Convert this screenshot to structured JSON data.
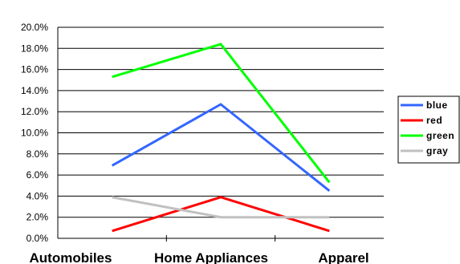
{
  "chart_data": {
    "type": "line",
    "categories": [
      "Automobiles",
      "Home Appliances",
      "Apparel"
    ],
    "ylim": [
      0,
      0.2
    ],
    "yticks": [
      0,
      0.02,
      0.04,
      0.06,
      0.08,
      0.1,
      0.12,
      0.14,
      0.16,
      0.18,
      0.2
    ],
    "ytick_labels": [
      "0.0%",
      "2.0%",
      "4.0%",
      "6.0%",
      "8.0%",
      "10.0%",
      "12.0%",
      "14.0%",
      "16.0%",
      "18.0%",
      "20.0%"
    ],
    "grid": "horizontal",
    "legend_position": "right",
    "series": [
      {
        "name": "blue",
        "color": "#3366ff",
        "values": [
          0.069,
          0.127,
          0.045
        ]
      },
      {
        "name": "red",
        "color": "#ff0000",
        "values": [
          0.007,
          0.039,
          0.007
        ]
      },
      {
        "name": "green",
        "color": "#00ff00",
        "values": [
          0.153,
          0.184,
          0.053
        ]
      },
      {
        "name": "gray",
        "color": "#c0c0c0",
        "values": [
          0.039,
          0.02,
          0.02
        ]
      }
    ]
  }
}
